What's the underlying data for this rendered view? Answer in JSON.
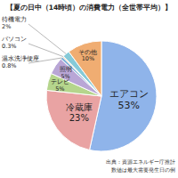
{
  "chart_data": {
    "type": "pie",
    "title": "【夏の日中（14時頃）の消費電力（全世帯平均）】",
    "categories": [
      "エアコン",
      "冷蔵庫",
      "テレビ",
      "照明",
      "温水洗浄便座",
      "パソコン",
      "待機電力",
      "その他"
    ],
    "values": [
      53,
      23,
      5,
      5,
      0.8,
      0.3,
      2,
      10
    ],
    "value_labels": [
      "53%",
      "23%",
      "5%",
      "5%",
      "0.8%",
      "0.3%",
      "2%",
      "10%"
    ],
    "colors": [
      "#8fb4ea",
      "#e9a3a3",
      "#b5d58c",
      "#b9a6d6",
      "#7fb0d8",
      "#f2c48a",
      "#86cad8",
      "#f0ad72"
    ],
    "data_labels": true,
    "annotations": [
      "出典：資源エネルギー庁推計",
      "数値は最大需要発生日の例"
    ]
  }
}
